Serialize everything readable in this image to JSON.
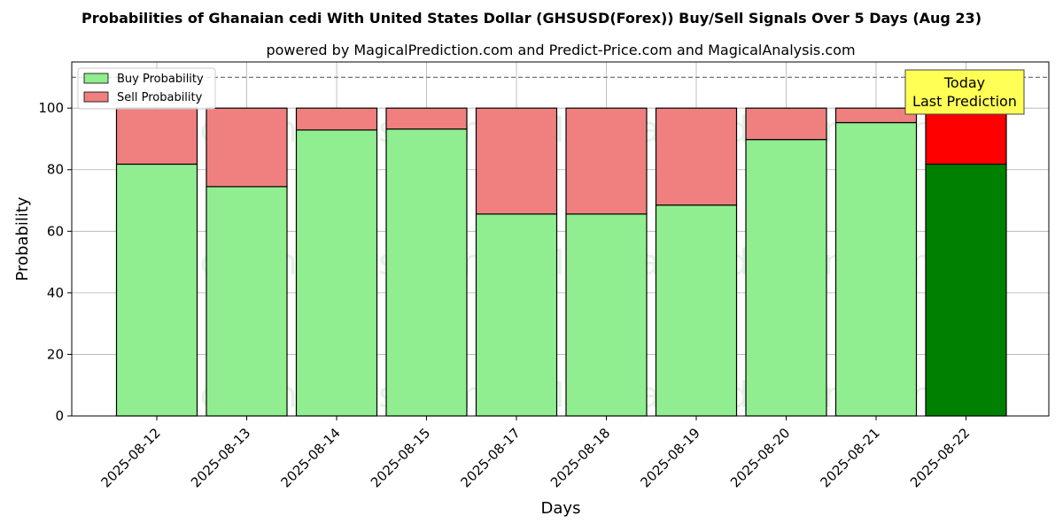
{
  "chart_data": {
    "type": "bar",
    "stacked": true,
    "title": "Probabilities of Ghanaian cedi With United States Dollar (GHSUSD(Forex)) Buy/Sell Signals Over 5 Days (Aug 23)",
    "subtitle": "powered by MagicalPrediction.com and Predict-Price.com and MagicalAnalysis.com",
    "xlabel": "Days",
    "ylabel": "Probability",
    "ylim": [
      0,
      115
    ],
    "yticks": [
      0,
      20,
      40,
      60,
      80,
      100
    ],
    "reference_line": 110,
    "grid": true,
    "legend_position": "top-left",
    "categories": [
      "2025-08-12",
      "2025-08-13",
      "2025-08-14",
      "2025-08-15",
      "2025-08-17",
      "2025-08-18",
      "2025-08-19",
      "2025-08-20",
      "2025-08-21",
      "2025-08-22"
    ],
    "series": [
      {
        "name": "Buy Probability",
        "color": "#90ee90",
        "highlight_color": "#008000",
        "values": [
          81.8,
          74.5,
          92.9,
          93.2,
          65.6,
          65.6,
          68.5,
          89.8,
          95.3,
          81.8
        ]
      },
      {
        "name": "Sell Probability",
        "color": "#f08080",
        "highlight_color": "#ff0000",
        "values": [
          18.2,
          25.5,
          7.1,
          6.8,
          34.4,
          34.4,
          31.5,
          10.2,
          4.7,
          18.2
        ]
      }
    ],
    "highlight_index": 9,
    "annotation": {
      "line1": "Today",
      "line2": "Last Prediction",
      "box_color": "#ffff55"
    },
    "watermarks": [
      "MagicalAnalysis.com",
      "MagicalPrediction.com"
    ]
  }
}
